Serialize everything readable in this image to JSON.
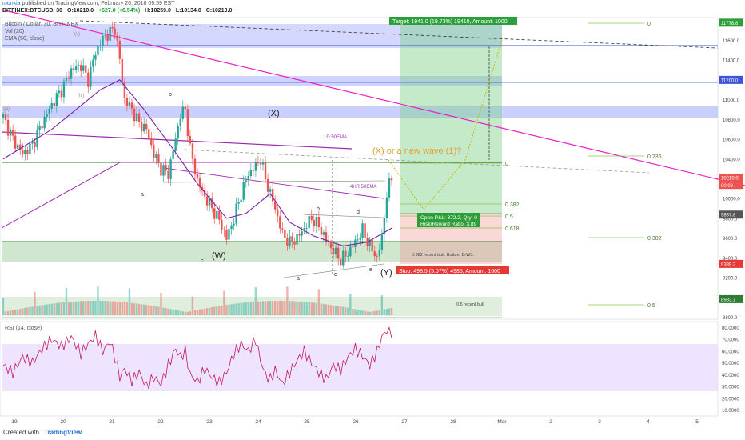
{
  "header": {
    "publisher": "monkia",
    "published_line": "published on TradingView.com, February 26, 2018 09:59 EST",
    "symbol": "BITFINEX:BTCUSD, 30",
    "open": "O:10210.0",
    "high": "H:10259.0",
    "low": "L:10134.0",
    "close": "C:10210.0",
    "change": "+627.0 (+6.54%)"
  },
  "legend": {
    "title": "Bitcoin / Dollar, 30, BITFINEX",
    "vol": "Vol (20)",
    "ema": "EMA (50, close)"
  },
  "footer": {
    "created_with": "Created with",
    "brand": "TradingView"
  },
  "colors": {
    "up": "#26a69a",
    "down": "#ef5350",
    "magenta": "#e91ec8",
    "purple": "#9c27b0",
    "ema": "#7b1fa2",
    "blue_zone": "#9fa8ff",
    "target_green": "#2e9e3a",
    "stop_red": "#e53935",
    "rsi_line": "#c2185b",
    "rsi_band": "#e9dbff"
  },
  "annotations": {
    "target_label": "Target: 1941.0 (19.73%) 19410, Amount: 1000",
    "stop_label": "Stop: 498.5 (5.07%) 4985, Amount: 1000",
    "pnl_line1": "Open P&L: 372.2, Qty: 0",
    "pnl_line2": "Risk/Reward Ratio: 3.89",
    "wave_question": "(X) or a new wave (1)?",
    "x_label": "(X)",
    "w_label": "(W)",
    "y_label": "(Y)",
    "ema_1d": "1D 50EMA",
    "ema_4h": "4HR 50EMA",
    "bull_note": "0.382 recent bull. Bottom BrW3.",
    "half_bull": "0.5 recent bull",
    "wave_a1": "a",
    "wave_b1": "b",
    "wave_c1": "c",
    "wave_a2": "a",
    "wave_b2": "b",
    "wave_c2": "c",
    "wave_d2": "d",
    "wave_e2": "e",
    "wave_iv": "(iv)",
    "wave_v": "(v)",
    "wave_iii": "(iii)",
    "fib_zero_right": "0",
    "fib_0382_right": "0.382",
    "fib_05_right": "0.5",
    "fib_0618_right": "0.618",
    "fib_top_zero": "0",
    "fib_0236_big": "0.236",
    "fib_0382_big": "0.382",
    "fib_05_big": "0.5",
    "rsi_label": "RSI (14, close)"
  },
  "chart_data": {
    "type": "candlestick",
    "symbol": "BITFINEX:BTCUSD",
    "interval": "30",
    "x_ticks": [
      "19",
      "20",
      "21",
      "22",
      "23",
      "24",
      "25",
      "26",
      "27",
      "28",
      "Mar",
      "2",
      "3",
      "4",
      "5"
    ],
    "price_ticks": [
      11600.0,
      11400.0,
      11200.0,
      11000.0,
      10800.0,
      10600.0,
      10400.0,
      10200.0,
      10000.0,
      9800.0,
      9600.0,
      9400.0,
      9200.0,
      8800.0
    ],
    "price_labels": {
      "target": "11778.8",
      "blue_zone": "11200.0",
      "last": "10210.0",
      "countdown": "00:08",
      "entry": "9837.8",
      "stop": "9339.3",
      "bottom": "8983.1"
    },
    "ylim": [
      8780,
      11830
    ],
    "rsi_ticks": [
      "80.0000",
      "70.0000",
      "60.0000",
      "50.0000",
      "40.0000",
      "30.0000",
      "20.0000",
      "10.0000"
    ],
    "rsi_ylim": [
      5,
      85
    ],
    "rsi_band": [
      30,
      70
    ],
    "price_path": [
      [
        0,
        10820
      ],
      [
        4,
        10600
      ],
      [
        8,
        10450
      ],
      [
        12,
        10540
      ],
      [
        16,
        10760
      ],
      [
        20,
        10950
      ],
      [
        24,
        11100
      ],
      [
        28,
        11300
      ],
      [
        32,
        11350
      ],
      [
        35,
        11200
      ],
      [
        38,
        11480
      ],
      [
        41,
        11620
      ],
      [
        44,
        11680
      ],
      [
        46,
        11720
      ],
      [
        48,
        11400
      ],
      [
        50,
        11000
      ],
      [
        53,
        10900
      ],
      [
        56,
        10760
      ],
      [
        59,
        10700
      ],
      [
        62,
        10450
      ],
      [
        65,
        10300
      ],
      [
        68,
        10250
      ],
      [
        71,
        10600
      ],
      [
        73,
        10850
      ],
      [
        75,
        10900
      ],
      [
        77,
        10500
      ],
      [
        80,
        10180
      ],
      [
        83,
        10020
      ],
      [
        86,
        9900
      ],
      [
        89,
        9780
      ],
      [
        92,
        9600
      ],
      [
        95,
        9800
      ],
      [
        98,
        10050
      ],
      [
        101,
        10250
      ],
      [
        104,
        10330
      ],
      [
        106,
        10400
      ],
      [
        108,
        10200
      ],
      [
        110,
        10050
      ],
      [
        112,
        9900
      ],
      [
        115,
        9640
      ],
      [
        118,
        9550
      ],
      [
        121,
        9600
      ],
      [
        124,
        9700
      ],
      [
        127,
        9800
      ],
      [
        130,
        9720
      ],
      [
        133,
        9580
      ],
      [
        136,
        9470
      ],
      [
        139,
        9380
      ],
      [
        142,
        9450
      ],
      [
        145,
        9560
      ],
      [
        148,
        9680
      ],
      [
        151,
        9520
      ],
      [
        154,
        9400
      ],
      [
        156,
        9600
      ],
      [
        158,
        10050
      ],
      [
        160,
        10210
      ]
    ],
    "rsi_path": [
      [
        0,
        48
      ],
      [
        4,
        42
      ],
      [
        8,
        55
      ],
      [
        12,
        50
      ],
      [
        16,
        62
      ],
      [
        20,
        70
      ],
      [
        24,
        64
      ],
      [
        28,
        72
      ],
      [
        32,
        58
      ],
      [
        35,
        66
      ],
      [
        38,
        73
      ],
      [
        41,
        60
      ],
      [
        44,
        68
      ],
      [
        46,
        55
      ],
      [
        48,
        38
      ],
      [
        50,
        45
      ],
      [
        53,
        35
      ],
      [
        56,
        42
      ],
      [
        59,
        30
      ],
      [
        62,
        38
      ],
      [
        65,
        32
      ],
      [
        68,
        48
      ],
      [
        71,
        62
      ],
      [
        73,
        55
      ],
      [
        75,
        60
      ],
      [
        77,
        40
      ],
      [
        80,
        34
      ],
      [
        83,
        45
      ],
      [
        86,
        38
      ],
      [
        89,
        33
      ],
      [
        92,
        42
      ],
      [
        95,
        58
      ],
      [
        98,
        66
      ],
      [
        101,
        60
      ],
      [
        104,
        70
      ],
      [
        106,
        52
      ],
      [
        108,
        40
      ],
      [
        110,
        36
      ],
      [
        112,
        44
      ],
      [
        115,
        32
      ],
      [
        118,
        42
      ],
      [
        121,
        52
      ],
      [
        124,
        60
      ],
      [
        127,
        50
      ],
      [
        130,
        42
      ],
      [
        133,
        36
      ],
      [
        136,
        48
      ],
      [
        139,
        44
      ],
      [
        142,
        55
      ],
      [
        145,
        62
      ],
      [
        148,
        56
      ],
      [
        151,
        48
      ],
      [
        154,
        60
      ],
      [
        156,
        72
      ],
      [
        158,
        78
      ],
      [
        160,
        76
      ]
    ],
    "ema_path": [
      [
        0,
        10400
      ],
      [
        20,
        10700
      ],
      [
        40,
        11100
      ],
      [
        48,
        11200
      ],
      [
        58,
        10900
      ],
      [
        70,
        10500
      ],
      [
        80,
        10150
      ],
      [
        92,
        9800
      ],
      [
        100,
        9850
      ],
      [
        110,
        10050
      ],
      [
        118,
        9760
      ],
      [
        128,
        9620
      ],
      [
        140,
        9520
      ],
      [
        150,
        9560
      ],
      [
        160,
        9700
      ]
    ]
  }
}
